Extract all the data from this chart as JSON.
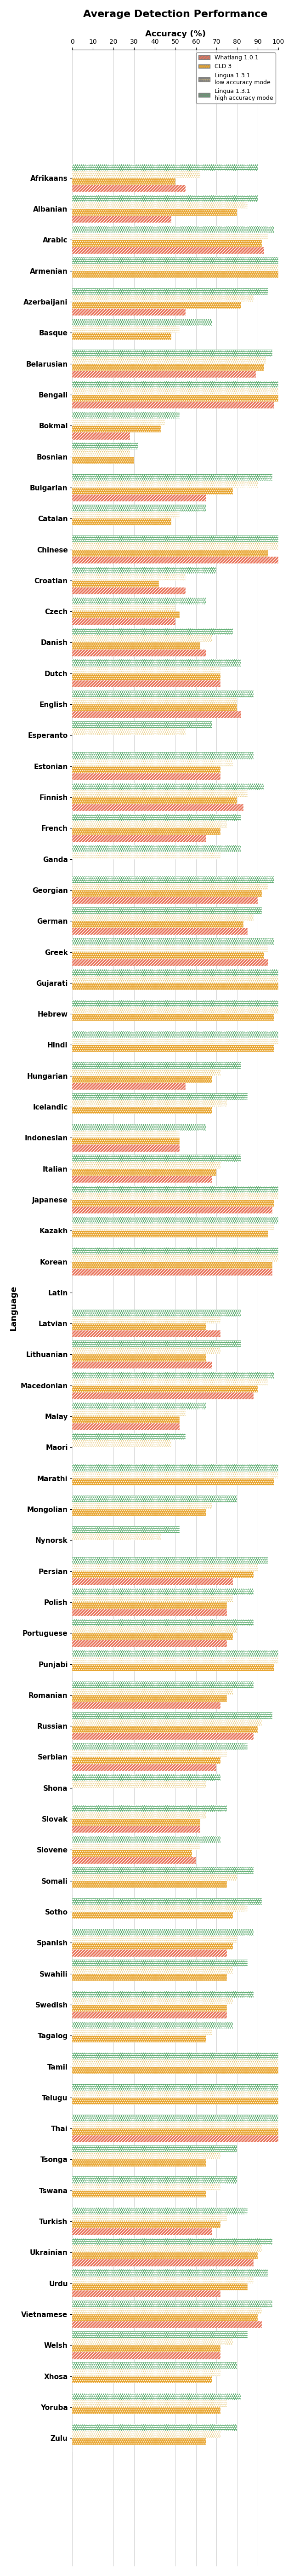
{
  "title": "Average Detection Performance",
  "xlabel": "Accuracy (%)",
  "ylabel": "Language",
  "xlim": [
    0,
    100
  ],
  "xticks": [
    0,
    10,
    20,
    30,
    40,
    50,
    60,
    70,
    80,
    90,
    100
  ],
  "legend_labels": [
    "Whatlang 1.0.1",
    "CLD 3",
    "Lingua 1.3.1\nlow accuracy mode",
    "Lingua 1.3.1\nhigh accuracy mode"
  ],
  "colors": [
    "#e8735a",
    "#e8a530",
    "#e8c97a",
    "#5aab6e"
  ],
  "languages": [
    "Afrikaans",
    "Albanian",
    "Arabic",
    "Armenian",
    "Azerbaijani",
    "Basque",
    "Belarusian",
    "Bengali",
    "Bokmal",
    "Bosnian",
    "Bulgarian",
    "Catalan",
    "Chinese",
    "Croatian",
    "Czech",
    "Danish",
    "Dutch",
    "English",
    "Esperanto",
    "Estonian",
    "Finnish",
    "French",
    "Ganda",
    "Georgian",
    "German",
    "Greek",
    "Gujarati",
    "Hebrew",
    "Hindi",
    "Hungarian",
    "Icelandic",
    "Indonesian",
    "Italian",
    "Japanese",
    "Kazakh",
    "Korean",
    "Latin",
    "Latvian",
    "Lithuanian",
    "Macedonian",
    "Malay",
    "Maori",
    "Marathi",
    "Mongolian",
    "Nynorsk",
    "Persian",
    "Polish",
    "Portuguese",
    "Punjabi",
    "Romanian",
    "Russian",
    "Serbian",
    "Shona",
    "Slovak",
    "Slovene",
    "Somali",
    "Sotho",
    "Spanish",
    "Swahili",
    "Swedish",
    "Tagalog",
    "Tamil",
    "Telugu",
    "Thai",
    "Tsonga",
    "Tswana",
    "Turkish",
    "Ukrainian",
    "Urdu",
    "Vietnamese",
    "Welsh",
    "Xhosa",
    "Yoruba",
    "Zulu"
  ],
  "values": {
    "whatlang": [
      55,
      48,
      93,
      0,
      55,
      0,
      89,
      98,
      28,
      0,
      65,
      0,
      100,
      55,
      50,
      65,
      72,
      82,
      0,
      72,
      83,
      65,
      0,
      90,
      85,
      95,
      0,
      0,
      0,
      55,
      0,
      52,
      68,
      97,
      0,
      97,
      0,
      72,
      68,
      88,
      52,
      0,
      0,
      0,
      0,
      78,
      75,
      75,
      0,
      72,
      88,
      70,
      0,
      62,
      60,
      0,
      0,
      75,
      0,
      75,
      0,
      0,
      0,
      100,
      0,
      0,
      68,
      88,
      72,
      92,
      72,
      0,
      0,
      0
    ],
    "cld3": [
      50,
      80,
      92,
      100,
      82,
      48,
      93,
      100,
      43,
      30,
      78,
      48,
      95,
      42,
      52,
      62,
      72,
      80,
      0,
      72,
      80,
      72,
      0,
      92,
      83,
      93,
      100,
      98,
      98,
      68,
      68,
      52,
      70,
      98,
      95,
      97,
      0,
      65,
      65,
      90,
      52,
      0,
      98,
      65,
      0,
      88,
      75,
      78,
      98,
      75,
      90,
      72,
      0,
      62,
      58,
      75,
      78,
      78,
      75,
      75,
      65,
      100,
      100,
      100,
      65,
      65,
      72,
      90,
      85,
      90,
      72,
      68,
      72,
      65
    ],
    "lingua_low": [
      62,
      85,
      95,
      100,
      88,
      52,
      94,
      100,
      45,
      28,
      90,
      52,
      100,
      55,
      50,
      68,
      72,
      80,
      55,
      78,
      85,
      75,
      72,
      95,
      88,
      95,
      100,
      100,
      100,
      72,
      75,
      52,
      72,
      100,
      98,
      100,
      0,
      72,
      72,
      95,
      55,
      48,
      100,
      68,
      43,
      90,
      78,
      80,
      100,
      78,
      92,
      75,
      65,
      65,
      62,
      80,
      85,
      80,
      78,
      78,
      68,
      100,
      100,
      100,
      72,
      72,
      75,
      92,
      88,
      92,
      78,
      72,
      75,
      72
    ],
    "lingua_high": [
      90,
      90,
      98,
      100,
      95,
      68,
      97,
      100,
      52,
      32,
      97,
      65,
      100,
      70,
      65,
      78,
      82,
      88,
      68,
      88,
      93,
      82,
      82,
      98,
      92,
      98,
      100,
      100,
      100,
      82,
      85,
      65,
      82,
      100,
      100,
      100,
      0,
      82,
      82,
      98,
      65,
      55,
      100,
      80,
      52,
      95,
      88,
      88,
      100,
      88,
      97,
      85,
      72,
      75,
      72,
      88,
      92,
      88,
      85,
      88,
      78,
      100,
      100,
      100,
      80,
      80,
      85,
      97,
      95,
      97,
      85,
      80,
      82,
      80
    ]
  }
}
